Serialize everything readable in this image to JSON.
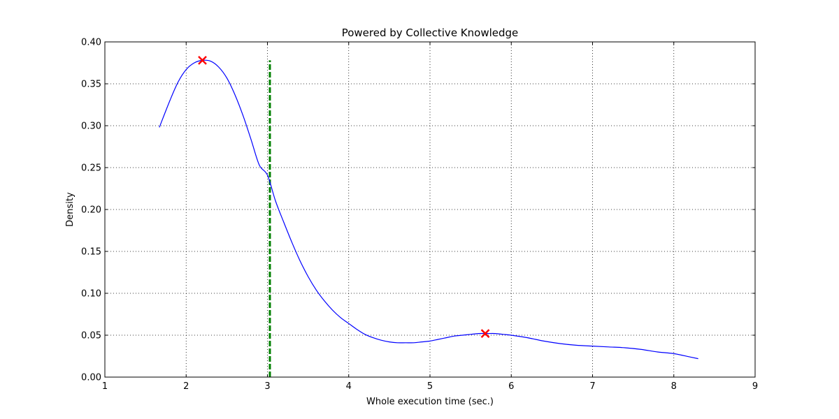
{
  "chart_data": {
    "type": "line",
    "title": "Powered by Collective Knowledge",
    "xlabel": "Whole execution time (sec.)",
    "ylabel": "Density",
    "xlim": [
      1,
      9
    ],
    "ylim": [
      0,
      0.4
    ],
    "xticks": [
      1,
      2,
      3,
      4,
      5,
      6,
      7,
      8,
      9
    ],
    "xtick_labels": [
      "1",
      "2",
      "3",
      "4",
      "5",
      "6",
      "7",
      "8",
      "9"
    ],
    "yticks": [
      0,
      0.05,
      0.1,
      0.15,
      0.2,
      0.25,
      0.3,
      0.35,
      0.4
    ],
    "ytick_labels": [
      "0.00",
      "0.05",
      "0.10",
      "0.15",
      "0.20",
      "0.25",
      "0.30",
      "0.35",
      "0.40"
    ],
    "grid": true,
    "series": [
      {
        "color": "#0000ff",
        "x": [
          1.67,
          1.8,
          1.9,
          2.0,
          2.1,
          2.2,
          2.3,
          2.4,
          2.5,
          2.6,
          2.7,
          2.8,
          2.9,
          3.0,
          3.1,
          3.2,
          3.3,
          3.4,
          3.5,
          3.6,
          3.7,
          3.8,
          3.9,
          4.0,
          4.1,
          4.2,
          4.3,
          4.4,
          4.5,
          4.6,
          4.7,
          4.8,
          4.9,
          5.0,
          5.1,
          5.2,
          5.3,
          5.4,
          5.5,
          5.6,
          5.7,
          5.8,
          5.9,
          6.0,
          6.2,
          6.4,
          6.6,
          6.8,
          7.0,
          7.2,
          7.4,
          7.6,
          7.8,
          8.0,
          8.2,
          8.3
        ],
        "y": [
          0.298,
          0.33,
          0.352,
          0.367,
          0.375,
          0.378,
          0.377,
          0.37,
          0.357,
          0.337,
          0.312,
          0.283,
          0.253,
          0.241,
          0.21,
          0.185,
          0.161,
          0.139,
          0.12,
          0.104,
          0.091,
          0.08,
          0.071,
          0.064,
          0.057,
          0.051,
          0.047,
          0.044,
          0.042,
          0.041,
          0.041,
          0.041,
          0.042,
          0.043,
          0.045,
          0.047,
          0.049,
          0.05,
          0.051,
          0.052,
          0.052,
          0.052,
          0.051,
          0.05,
          0.047,
          0.043,
          0.04,
          0.038,
          0.037,
          0.036,
          0.035,
          0.033,
          0.03,
          0.028,
          0.024,
          0.022
        ]
      }
    ],
    "vline": {
      "x": 3.03,
      "ymin": 0,
      "ymax": 0.378,
      "color": "#008000",
      "style": "dashed"
    },
    "markers": [
      {
        "x": 2.2,
        "y": 0.378,
        "color": "#ff0000",
        "symbol": "x"
      },
      {
        "x": 5.68,
        "y": 0.052,
        "color": "#ff0000",
        "symbol": "x"
      }
    ]
  }
}
